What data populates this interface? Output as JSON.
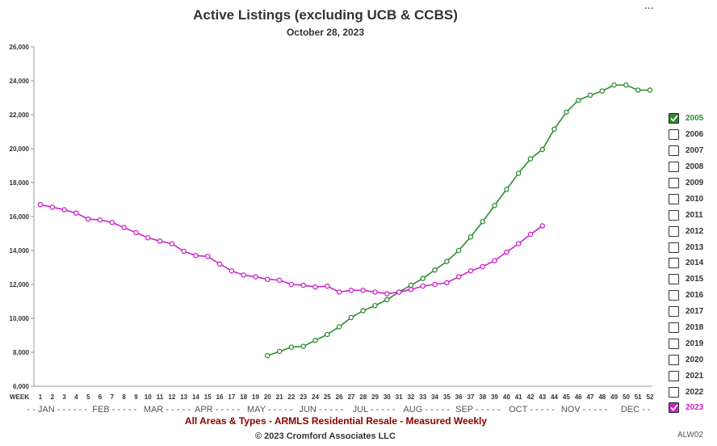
{
  "menu_label": "···",
  "footer": {
    "line1": "All Areas & Types - ARMLS Residential Resale - Measured Weekly",
    "line2": "© 2023 Cromford Associates LLC",
    "code": "ALW02"
  },
  "legend": [
    {
      "label": "2005",
      "checked": true,
      "color": "#2e8b2e"
    },
    {
      "label": "2006",
      "checked": false
    },
    {
      "label": "2007",
      "checked": false
    },
    {
      "label": "2008",
      "checked": false
    },
    {
      "label": "2009",
      "checked": false
    },
    {
      "label": "2010",
      "checked": false
    },
    {
      "label": "2011",
      "checked": false
    },
    {
      "label": "2012",
      "checked": false
    },
    {
      "label": "2013",
      "checked": false
    },
    {
      "label": "2014",
      "checked": false
    },
    {
      "label": "2015",
      "checked": false
    },
    {
      "label": "2016",
      "checked": false
    },
    {
      "label": "2017",
      "checked": false
    },
    {
      "label": "2018",
      "checked": false
    },
    {
      "label": "2019",
      "checked": false
    },
    {
      "label": "2020",
      "checked": false
    },
    {
      "label": "2021",
      "checked": false
    },
    {
      "label": "2022",
      "checked": false
    },
    {
      "label": "2023",
      "checked": true,
      "color": "#cc22cc"
    }
  ],
  "chart_data": {
    "type": "line",
    "title": "Active Listings (excluding UCB & CCBS)",
    "subtitle": "October 28, 2023",
    "xlabel": "WEEK",
    "ylabel": "",
    "ylim": [
      6000,
      26000
    ],
    "yticks": [
      6000,
      8000,
      10000,
      12000,
      14000,
      16000,
      18000,
      20000,
      22000,
      24000,
      26000
    ],
    "ytick_labels": [
      "6,000",
      "8,000",
      "10,000",
      "12,000",
      "14,000",
      "16,000",
      "18,000",
      "20,000",
      "22,000",
      "24,000",
      "26,000"
    ],
    "xlim": [
      1,
      52
    ],
    "xticks": [
      1,
      2,
      3,
      4,
      5,
      6,
      7,
      8,
      9,
      10,
      11,
      12,
      13,
      14,
      15,
      16,
      17,
      18,
      19,
      20,
      21,
      22,
      23,
      24,
      25,
      26,
      27,
      28,
      29,
      30,
      31,
      32,
      33,
      34,
      35,
      36,
      37,
      38,
      39,
      40,
      41,
      42,
      43,
      44,
      45,
      46,
      47,
      48,
      49,
      50,
      51,
      52
    ],
    "months": [
      {
        "label": "- - JAN - - - - - -",
        "week": 2.4
      },
      {
        "label": "FEB - - - - -",
        "week": 7.2
      },
      {
        "label": "MAR - - - - -",
        "week": 11.6
      },
      {
        "label": "APR - - - - -",
        "week": 15.8
      },
      {
        "label": "MAY - - - - -",
        "week": 20.2
      },
      {
        "label": "JUN - - - - -",
        "week": 24.5
      },
      {
        "label": "JUL - - - - -",
        "week": 28.9
      },
      {
        "label": "AUG - - - - -",
        "week": 33.3
      },
      {
        "label": "SEP - - - - -",
        "week": 37.6
      },
      {
        "label": "OCT - - - - -",
        "week": 42.1
      },
      {
        "label": "NOV - - - - -",
        "week": 46.5
      },
      {
        "label": "DEC - -",
        "week": 50.8
      }
    ],
    "grid": false,
    "legend_position": "right",
    "series": [
      {
        "name": "2005",
        "color": "#2e8b2e",
        "x": [
          20,
          21,
          22,
          23,
          24,
          25,
          26,
          27,
          28,
          29,
          30,
          31,
          32,
          33,
          34,
          35,
          36,
          37,
          38,
          39,
          40,
          41,
          42,
          43,
          44,
          45,
          46,
          47,
          48,
          49,
          50,
          51,
          52
        ],
        "values": [
          7800,
          8050,
          8300,
          8350,
          8700,
          9050,
          9500,
          10050,
          10450,
          10750,
          11100,
          11550,
          11950,
          12350,
          12850,
          13350,
          14000,
          14800,
          15700,
          16650,
          17600,
          18550,
          19400,
          19950,
          21150,
          22150,
          22850,
          23150,
          23400,
          23750,
          23750,
          23450,
          23450
        ]
      },
      {
        "name": "2023",
        "color": "#cc22cc",
        "x": [
          1,
          2,
          3,
          4,
          5,
          6,
          7,
          8,
          9,
          10,
          11,
          12,
          13,
          14,
          15,
          16,
          17,
          18,
          19,
          20,
          21,
          22,
          23,
          24,
          25,
          26,
          27,
          28,
          29,
          30,
          31,
          32,
          33,
          34,
          35,
          36,
          37,
          38,
          39,
          40,
          41,
          42,
          43
        ],
        "values": [
          16700,
          16550,
          16400,
          16200,
          15850,
          15800,
          15650,
          15350,
          15050,
          14750,
          14550,
          14400,
          13950,
          13700,
          13650,
          13200,
          12800,
          12550,
          12450,
          12300,
          12250,
          12000,
          11950,
          11850,
          11900,
          11550,
          11650,
          11650,
          11550,
          11450,
          11550,
          11700,
          11900,
          12000,
          12100,
          12450,
          12800,
          13050,
          13400,
          13900,
          14400,
          14950,
          15450
        ]
      }
    ]
  }
}
